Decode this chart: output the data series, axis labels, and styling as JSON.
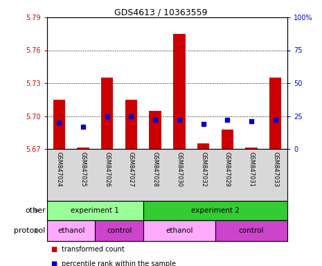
{
  "title": "GDS4613 / 10363559",
  "samples": [
    "GSM847024",
    "GSM847025",
    "GSM847026",
    "GSM847027",
    "GSM847028",
    "GSM847030",
    "GSM847032",
    "GSM847029",
    "GSM847031",
    "GSM847033"
  ],
  "bar_values": [
    5.715,
    5.671,
    5.735,
    5.715,
    5.705,
    5.775,
    5.675,
    5.688,
    5.671,
    5.735
  ],
  "bar_base": 5.67,
  "percentile_values": [
    20,
    17,
    25,
    25,
    22,
    22,
    19,
    22,
    21,
    22
  ],
  "ylim": [
    5.67,
    5.79
  ],
  "yticks": [
    5.67,
    5.7,
    5.73,
    5.76,
    5.79
  ],
  "y2lim": [
    0,
    100
  ],
  "y2ticks": [
    0,
    25,
    50,
    75,
    100
  ],
  "y2tick_labels": [
    "0",
    "25",
    "50",
    "75",
    "100%"
  ],
  "bar_color": "#cc0000",
  "percentile_color": "#0000cc",
  "left_ytick_color": "#cc0000",
  "right_ytick_color": "#0000cc",
  "other_groups": [
    {
      "label": "experiment 1",
      "start": 0,
      "end": 4,
      "color": "#99ff99"
    },
    {
      "label": "experiment 2",
      "start": 4,
      "end": 10,
      "color": "#33cc33"
    }
  ],
  "protocol_groups": [
    {
      "label": "ethanol",
      "start": 0,
      "end": 2,
      "color": "#ffaaff"
    },
    {
      "label": "control",
      "start": 2,
      "end": 4,
      "color": "#cc44cc"
    },
    {
      "label": "ethanol",
      "start": 4,
      "end": 7,
      "color": "#ffaaff"
    },
    {
      "label": "control",
      "start": 7,
      "end": 10,
      "color": "#cc44cc"
    }
  ],
  "legend_items": [
    {
      "label": "transformed count",
      "color": "#cc0000"
    },
    {
      "label": "percentile rank within the sample",
      "color": "#0000cc"
    }
  ],
  "bar_width": 0.5,
  "percentile_marker_size": 4,
  "plot_bg_color": "#d8d8d8",
  "fig_bg_color": "#ffffff",
  "arrow_color": "#888888",
  "row_label_fontsize": 8,
  "tick_fontsize": 7,
  "sample_fontsize": 6,
  "group_fontsize": 7.5,
  "legend_fontsize": 7
}
